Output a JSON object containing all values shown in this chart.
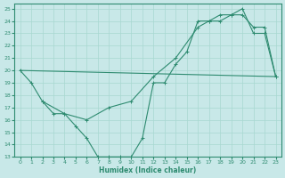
{
  "line1_x": [
    0,
    1,
    2,
    3,
    4,
    5,
    6,
    7,
    8,
    9,
    10,
    11,
    12,
    13,
    14,
    15,
    16,
    17,
    18,
    19,
    20,
    21,
    22,
    23
  ],
  "line1_y": [
    20,
    19,
    17.5,
    16.5,
    16.5,
    15.5,
    14.5,
    13,
    13,
    13,
    13,
    14.5,
    19,
    19,
    20.5,
    21.5,
    24,
    24,
    24,
    24.5,
    25,
    23,
    23,
    19.5
  ],
  "line2_x": [
    0,
    23
  ],
  "line2_y": [
    20,
    19.5
  ],
  "line3_x": [
    2,
    4,
    6,
    8,
    10,
    12,
    14,
    16,
    17,
    18,
    19,
    20,
    21,
    22,
    23
  ],
  "line3_y": [
    17.5,
    16.5,
    16.0,
    17.0,
    17.5,
    19.5,
    21.0,
    23.5,
    24.0,
    24.5,
    24.5,
    24.5,
    23.5,
    23.5,
    19.5
  ],
  "color": "#2e8b70",
  "bg_color": "#c8e8e8",
  "grid_color": "#a8d8d0",
  "xlim": [
    -0.5,
    23.5
  ],
  "ylim": [
    13,
    25.4
  ],
  "xlabel": "Humidex (Indice chaleur)",
  "xticks": [
    0,
    1,
    2,
    3,
    4,
    5,
    6,
    7,
    8,
    9,
    10,
    11,
    12,
    13,
    14,
    15,
    16,
    17,
    18,
    19,
    20,
    21,
    22,
    23
  ],
  "yticks": [
    13,
    14,
    15,
    16,
    17,
    18,
    19,
    20,
    21,
    22,
    23,
    24,
    25
  ]
}
